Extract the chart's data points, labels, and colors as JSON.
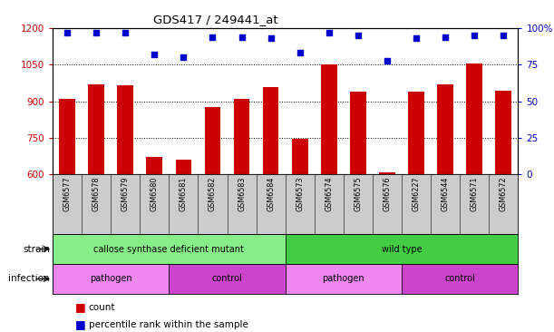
{
  "title": "GDS417 / 249441_at",
  "samples": [
    "GSM6577",
    "GSM6578",
    "GSM6579",
    "GSM6580",
    "GSM6581",
    "GSM6582",
    "GSM6583",
    "GSM6584",
    "GSM6573",
    "GSM6574",
    "GSM6575",
    "GSM6576",
    "GSM6227",
    "GSM6544",
    "GSM6571",
    "GSM6572"
  ],
  "counts": [
    910,
    970,
    965,
    670,
    660,
    875,
    910,
    960,
    745,
    1050,
    940,
    608,
    940,
    970,
    1055,
    945
  ],
  "percentiles": [
    97,
    97,
    97,
    82,
    80,
    94,
    94,
    93,
    83,
    97,
    95,
    78,
    93,
    94,
    95,
    95
  ],
  "ylim_left": [
    600,
    1200
  ],
  "ylim_right": [
    0,
    100
  ],
  "yticks_left": [
    600,
    750,
    900,
    1050,
    1200
  ],
  "yticks_right": [
    0,
    25,
    50,
    75,
    100
  ],
  "bar_color": "#cc0000",
  "dot_color": "#0000cc",
  "bar_bottom": 600,
  "strain_groups": [
    {
      "label": "callose synthase deficient mutant",
      "start": 0,
      "end": 8,
      "color": "#88ee88"
    },
    {
      "label": "wild type",
      "start": 8,
      "end": 16,
      "color": "#44cc44"
    }
  ],
  "infection_groups": [
    {
      "label": "pathogen",
      "start": 0,
      "end": 4,
      "color": "#ee88ee"
    },
    {
      "label": "control",
      "start": 4,
      "end": 8,
      "color": "#cc44cc"
    },
    {
      "label": "pathogen",
      "start": 8,
      "end": 12,
      "color": "#ee88ee"
    },
    {
      "label": "control",
      "start": 12,
      "end": 16,
      "color": "#cc44cc"
    }
  ],
  "strain_label": "strain",
  "infection_label": "infection",
  "legend_count_label": "count",
  "legend_percentile_label": "percentile rank within the sample",
  "bar_color_legend": "#cc0000",
  "dot_color_legend": "#0000cc",
  "tick_label_color_left": "#cc0000",
  "tick_label_color_right": "#0000cc",
  "xlabels_bg": "#cccccc",
  "grid_yticks": [
    750,
    900,
    1050
  ]
}
